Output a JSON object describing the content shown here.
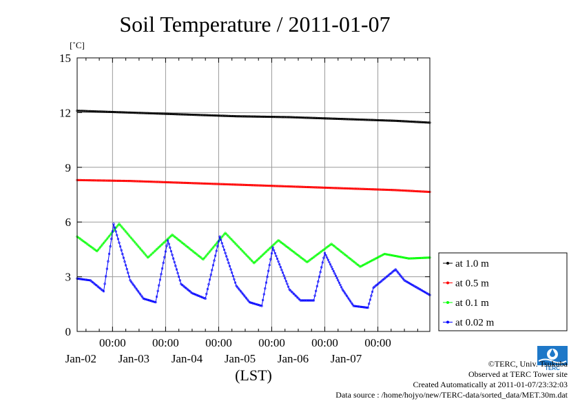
{
  "chart_data": {
    "type": "line",
    "title": "Soil Temperature / 2011-01-07",
    "ylabel": "[˚C]",
    "xlabel": "(LST)",
    "ylim": [
      0,
      15
    ],
    "yticks": [
      "0",
      "3",
      "6",
      "9",
      "12",
      "15"
    ],
    "xlim": [
      "2011-01-01T08:00",
      "2011-01-07T23:30"
    ],
    "xticks": [
      {
        "x": "2011-01-02T00:00",
        "time": "00:00",
        "date": "Jan-02"
      },
      {
        "x": "2011-01-03T00:00",
        "time": "00:00",
        "date": "Jan-03"
      },
      {
        "x": "2011-01-04T00:00",
        "time": "00:00",
        "date": "Jan-04"
      },
      {
        "x": "2011-01-05T00:00",
        "time": "00:00",
        "date": "Jan-05"
      },
      {
        "x": "2011-01-06T00:00",
        "time": "00:00",
        "date": "Jan-06"
      },
      {
        "x": "2011-01-07T00:00",
        "time": "00:00",
        "date": "Jan-07"
      }
    ],
    "grid": true,
    "legend_position": "right",
    "series": [
      {
        "name": "at 1.0 m",
        "color": "#000000",
        "marker": "dot",
        "x": [
          "2011-01-01T08:00",
          "2011-01-02T08:00",
          "2011-01-03T08:00",
          "2011-01-04T08:00",
          "2011-01-05T08:00",
          "2011-01-06T08:00",
          "2011-01-07T08:00",
          "2011-01-07T23:30"
        ],
        "y": [
          12.1,
          12.0,
          11.9,
          11.8,
          11.75,
          11.65,
          11.55,
          11.45
        ]
      },
      {
        "name": "at 0.5 m",
        "color": "#ff0000",
        "marker": "dot",
        "x": [
          "2011-01-01T08:00",
          "2011-01-02T08:00",
          "2011-01-03T08:00",
          "2011-01-04T08:00",
          "2011-01-05T08:00",
          "2011-01-06T08:00",
          "2011-01-07T08:00",
          "2011-01-07T23:30"
        ],
        "y": [
          8.3,
          8.25,
          8.15,
          8.05,
          7.95,
          7.85,
          7.75,
          7.65
        ]
      },
      {
        "name": "at 0.1 m",
        "color": "#00ff00",
        "marker": "dot",
        "x": [
          "2011-01-01T08:00",
          "2011-01-01T17:00",
          "2011-01-02T03:00",
          "2011-01-02T16:00",
          "2011-01-03T03:00",
          "2011-01-03T17:00",
          "2011-01-04T03:00",
          "2011-01-04T16:00",
          "2011-01-05T03:00",
          "2011-01-05T16:00",
          "2011-01-06T03:00",
          "2011-01-06T16:00",
          "2011-01-07T03:00",
          "2011-01-07T14:00",
          "2011-01-07T23:30"
        ],
        "y": [
          5.2,
          4.4,
          5.9,
          4.05,
          5.3,
          3.95,
          5.4,
          3.75,
          5.0,
          3.8,
          4.8,
          3.55,
          4.25,
          4.0,
          4.05
        ]
      },
      {
        "name": "at 0.02 m",
        "color": "#0000ff",
        "marker": "dot",
        "x": [
          "2011-01-01T08:00",
          "2011-01-01T14:00",
          "2011-01-01T20:00",
          "2011-01-02T00:30",
          "2011-01-02T08:00",
          "2011-01-02T14:00",
          "2011-01-02T19:30",
          "2011-01-03T01:00",
          "2011-01-03T07:00",
          "2011-01-03T12:00",
          "2011-01-03T18:00",
          "2011-01-04T00:30",
          "2011-01-04T08:00",
          "2011-01-04T14:00",
          "2011-01-04T19:30",
          "2011-01-05T00:30",
          "2011-01-05T08:00",
          "2011-01-05T13:00",
          "2011-01-05T19:00",
          "2011-01-06T00:00",
          "2011-01-06T08:00",
          "2011-01-06T13:00",
          "2011-01-06T19:30",
          "2011-01-06T22:00",
          "2011-01-07T08:00",
          "2011-01-07T12:00",
          "2011-01-07T23:30"
        ],
        "y": [
          2.9,
          2.8,
          2.2,
          5.9,
          2.8,
          1.8,
          1.6,
          5.0,
          2.6,
          2.1,
          1.8,
          5.2,
          2.5,
          1.6,
          1.4,
          4.6,
          2.3,
          1.7,
          1.7,
          4.3,
          2.3,
          1.4,
          1.3,
          2.4,
          3.4,
          2.8,
          2.0
        ]
      }
    ]
  },
  "credits": {
    "copyright": "©TERC, Univ. Tsukuba",
    "observed": "Observed at TERC Tower site",
    "created": "Created Automatically at 2011-01-07/23:32:03",
    "source": "Data source : /home/hojyo/new/TERC-data/sorted_data/MET.30m.dat",
    "logo_text": "TERC"
  }
}
